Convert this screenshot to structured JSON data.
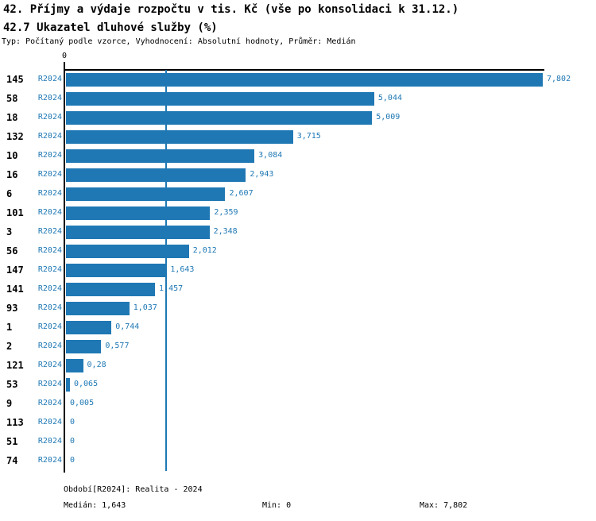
{
  "header": {
    "title_line1": "42. Příjmy a výdaje rozpočtu v tis. Kč (vše po konsolidaci k 31.12.)",
    "title_line2": "42.7 Ukazatel dluhové služby (%)",
    "subtitle": "Typ: Počítaný podle vzorce, Vyhodnocení: Absolutní hodnoty, Průměr: Medián"
  },
  "chart_data": {
    "type": "bar",
    "orientation": "horizontal",
    "title": "42.7 Ukazatel dluhové služby (%)",
    "axis_zero_label": "0",
    "series_label": "R2024",
    "categories": [
      "145",
      "58",
      "18",
      "132",
      "10",
      "16",
      "6",
      "101",
      "3",
      "56",
      "147",
      "141",
      "93",
      "1",
      "2",
      "121",
      "53",
      "9",
      "113",
      "51",
      "74"
    ],
    "values": [
      7.802,
      5.044,
      5.009,
      3.715,
      3.084,
      2.943,
      2.607,
      2.359,
      2.348,
      2.012,
      1.643,
      1.457,
      1.037,
      0.744,
      0.577,
      0.28,
      0.065,
      0.005,
      0,
      0,
      0
    ],
    "value_labels": [
      "7,802",
      "5,044",
      "5,009",
      "3,715",
      "3,084",
      "2,943",
      "2,607",
      "2,359",
      "2,348",
      "2,012",
      "1,643",
      "1,457",
      "1,037",
      "0,744",
      "0,577",
      "0,28",
      "0,065",
      "0,005",
      "0",
      "0",
      "0"
    ],
    "xlim": [
      0,
      7.802
    ],
    "median_value": 1.643,
    "grid": false,
    "legend": false,
    "bar_color": "#1F78B4",
    "median_line_color": "#1F78B4",
    "label_color": "#1F78B4",
    "axis_color": "#000000"
  },
  "footer": {
    "period_label": "Období[R2024]: Realita - 2024",
    "median_label": "Medián: 1,643",
    "min_label": "Min: 0",
    "max_label": "Max: 7,802"
  }
}
